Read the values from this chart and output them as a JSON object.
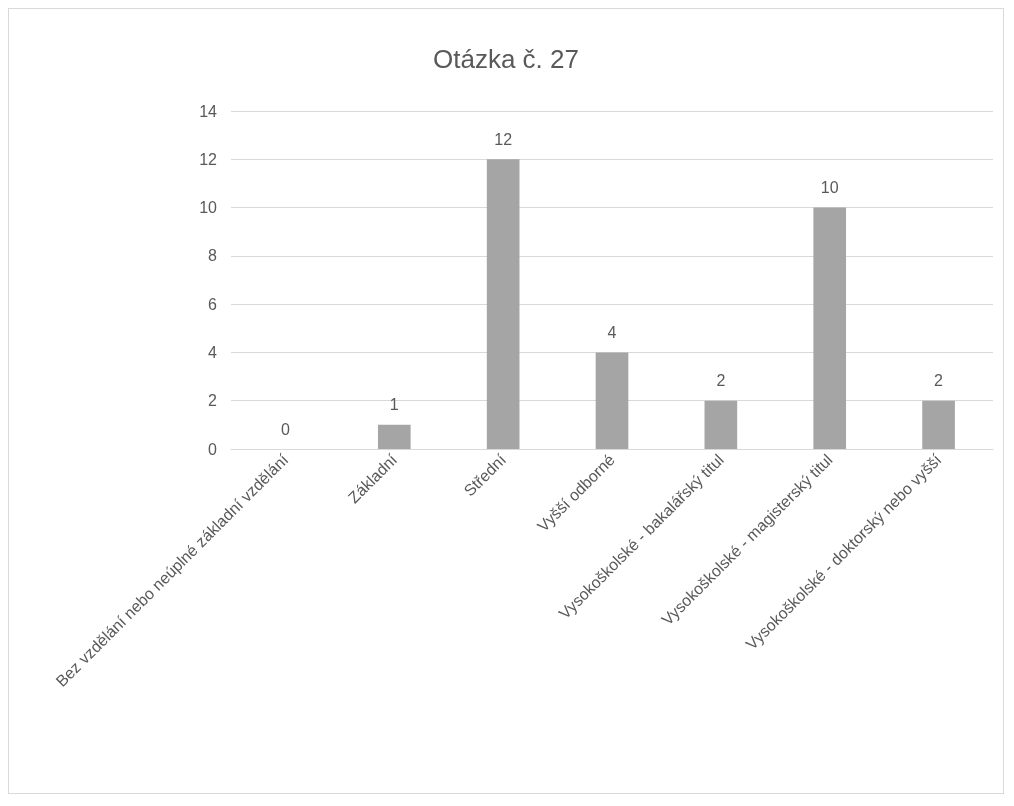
{
  "chart_data": {
    "type": "bar",
    "title": "Otázka č. 27",
    "categories": [
      "Bez vzdělání nebo neúplné základní vzdělání",
      "Základní",
      "Střední",
      "Vyšší odborné",
      "Vysokoškolské - bakalářský titul",
      "Vysokoškolské - magisterský titul",
      "Vysokoškolské - doktorský nebo vyšší"
    ],
    "values": [
      0,
      1,
      12,
      4,
      2,
      10,
      2
    ],
    "color": "#a5a5a5",
    "ylim": [
      0,
      14
    ],
    "yticks": [
      0,
      2,
      4,
      6,
      8,
      10,
      12,
      14
    ],
    "grid": "y",
    "data_labels": true
  }
}
